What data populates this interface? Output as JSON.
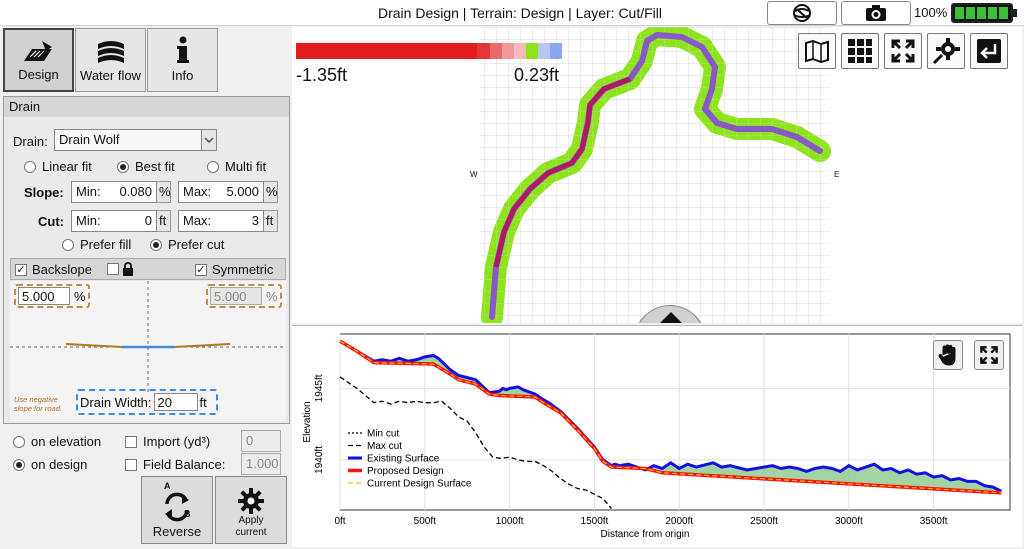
{
  "title": "Drain Design | Terrain: Design | Layer: Cut/Fill",
  "statusbar": {
    "battery": "100%"
  },
  "tabs": [
    {
      "label": "Design",
      "icon": "design-icon",
      "active": true
    },
    {
      "label": "Water flow",
      "icon": "water-flow-icon",
      "active": false
    },
    {
      "label": "Info",
      "icon": "info-icon",
      "active": false
    }
  ],
  "panel": {
    "header": "Drain",
    "drain_label": "Drain:",
    "drain_value": "Drain Wolf",
    "fit_options": [
      "Linear fit",
      "Best fit",
      "Multi fit"
    ],
    "fit_selected": "Best fit",
    "slope_label": "Slope:",
    "min_label": "Min:",
    "max_label": "Max:",
    "slope_min": "0.080",
    "slope_max": "5.000",
    "slope_unit": "%",
    "cut_label": "Cut:",
    "cut_min": "0",
    "cut_max": "3",
    "cut_unit": "ft",
    "prefer_options": [
      "Prefer fill",
      "Prefer cut"
    ],
    "prefer_selected": "Prefer cut",
    "backslope_label": "Backslope",
    "symmetric_label": "Symmetric",
    "backslope_left": "5.000",
    "backslope_right": "5.000",
    "backslope_unit": "%",
    "hint": "Use negative slope for road.",
    "drain_width_label": "Drain Width:",
    "drain_width": "20",
    "drain_width_unit": "ft"
  },
  "bottom": {
    "on_elevation": "on elevation",
    "on_design": "on design",
    "import_label": "Import (yd³)",
    "import_value": "0",
    "field_balance_label": "Field Balance:",
    "field_balance_value": "1.000",
    "reverse_label": "Reverse",
    "apply_label_1": "Apply",
    "apply_label_2": "current",
    "reverse_a": "A",
    "reverse_b": "B"
  },
  "map": {
    "legend_min": "-1.35ft",
    "legend_max": "0.23ft",
    "legend_colors": [
      "#e21b1b",
      "#e21b1b",
      "#e21b1b",
      "#e21b1b",
      "#e21b1b",
      "#e21b1b",
      "#e21b1b",
      "#e21b1b",
      "#e21b1b",
      "#e21b1b",
      "#e21b1b",
      "#e21b1b",
      "#e21b1b",
      "#e21b1b",
      "#e21b1b",
      "#e23636",
      "#e86a6a",
      "#f19898",
      "#f6bcbc",
      "#8ee41b",
      "#b8c8f6",
      "#8aa8ee"
    ],
    "compass_w": "W",
    "compass_e": "E",
    "tools": [
      "map-view-icon",
      "grid-icon",
      "fullscreen-icon",
      "settings-icon",
      "exit-icon"
    ]
  },
  "chart_data": {
    "type": "line",
    "xlabel": "Distance from origin",
    "ylabel": "Elevation",
    "x_ticks": [
      "0ft",
      "500ft",
      "1000ft",
      "1500ft",
      "2000ft",
      "2500ft",
      "3000ft",
      "3500ft"
    ],
    "y_ticks": [
      "1940ft",
      "1945ft"
    ],
    "xlim": [
      0,
      3950
    ],
    "ylim": [
      1936.5,
      1948.8
    ],
    "legend": [
      "Min cut",
      "Max cut",
      "Existing Surface",
      "Proposed Design",
      "Current Design Surface"
    ],
    "series": [
      {
        "name": "Existing Surface",
        "color": "#1010e0",
        "x": [
          0,
          100,
          200,
          250,
          300,
          350,
          400,
          450,
          500,
          550,
          580,
          650,
          700,
          800,
          880,
          940,
          960,
          980,
          1000,
          1050,
          1080,
          1150,
          1200,
          1230,
          1300,
          1400,
          1500,
          1550,
          1600,
          1620,
          1650,
          1700,
          1800,
          1850,
          1900,
          1950,
          2000,
          2050,
          2100,
          2200,
          2250,
          2300,
          2400,
          2500,
          2550,
          2600,
          2650,
          2700,
          2750,
          2800,
          2850,
          2900,
          2950,
          3000,
          3050,
          3100,
          3150,
          3200,
          3250,
          3300,
          3350,
          3400,
          3450,
          3500,
          3550,
          3600,
          3650,
          3700,
          3750,
          3800,
          3850,
          3900
        ],
        "y": [
          1948.3,
          1947.6,
          1946.9,
          1947.0,
          1946.9,
          1947.1,
          1946.9,
          1947.0,
          1947.2,
          1947.3,
          1947.1,
          1946.3,
          1945.9,
          1945.6,
          1944.7,
          1944.8,
          1945.0,
          1944.9,
          1945.0,
          1945.1,
          1944.9,
          1944.6,
          1944.2,
          1944.0,
          1943.4,
          1942.2,
          1940.9,
          1940.0,
          1939.6,
          1939.7,
          1939.6,
          1939.7,
          1939.3,
          1939.6,
          1939.4,
          1939.8,
          1939.4,
          1939.7,
          1939.5,
          1939.8,
          1939.5,
          1939.6,
          1939.3,
          1939.5,
          1939.6,
          1939.4,
          1939.5,
          1939.4,
          1939.2,
          1939.4,
          1939.5,
          1939.4,
          1939.2,
          1939.6,
          1939.3,
          1939.5,
          1939.7,
          1939.3,
          1939.4,
          1939.1,
          1939.3,
          1939.0,
          1939.1,
          1938.8,
          1938.9,
          1938.6,
          1938.7,
          1938.5,
          1938.5,
          1938.2,
          1938.1,
          1937.8
        ]
      },
      {
        "name": "Proposed Design",
        "color": "#ff1010",
        "x": [
          0,
          100,
          200,
          550,
          580,
          650,
          700,
          800,
          880,
          940,
          1150,
          1200,
          1300,
          1400,
          1500,
          1550,
          1600,
          1800,
          1900,
          3900
        ],
        "y": [
          1948.3,
          1947.6,
          1946.8,
          1946.7,
          1946.5,
          1946.0,
          1945.6,
          1945.3,
          1944.6,
          1944.5,
          1944.4,
          1944.0,
          1943.3,
          1942.1,
          1940.8,
          1939.9,
          1939.5,
          1939.4,
          1939.1,
          1937.7
        ]
      },
      {
        "name": "Max cut",
        "color": "#000000",
        "x": [
          0,
          100,
          150,
          200,
          250,
          300,
          350,
          400,
          450,
          500,
          550,
          600,
          650,
          700,
          750,
          800,
          850,
          900,
          950,
          1000,
          1050,
          1100,
          1150,
          1200,
          1250,
          1300,
          1350,
          1400,
          1450,
          1500,
          1550,
          1580,
          1600
        ],
        "y": [
          1945.8,
          1945.0,
          1944.5,
          1944.0,
          1944.1,
          1943.9,
          1944.1,
          1944.0,
          1944.1,
          1944.0,
          1944.0,
          1944.1,
          1943.6,
          1943.0,
          1942.7,
          1941.9,
          1940.9,
          1940.2,
          1940.1,
          1940.2,
          1940.0,
          1939.9,
          1939.9,
          1939.6,
          1939.2,
          1938.7,
          1938.3,
          1938.0,
          1937.9,
          1937.6,
          1937.3,
          1936.9,
          1936.6
        ]
      }
    ]
  }
}
